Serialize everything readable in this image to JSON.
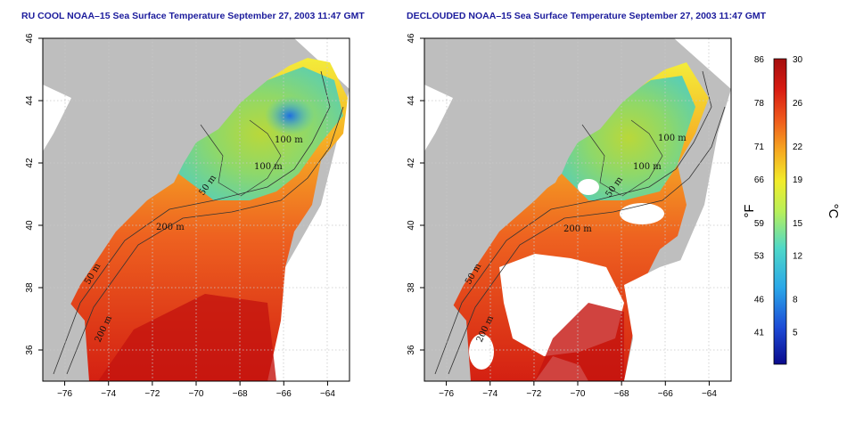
{
  "titles": {
    "left": "RU COOL NOAA–15 Sea Surface Temperature September 27, 2003 11:47 GMT",
    "right": "DECLOUDED NOAA–15 Sea Surface Temperature September 27, 2003 11:47 GMT"
  },
  "axes": {
    "x_ticks": [
      "−76",
      "−74",
      "−72",
      "−70",
      "−68",
      "−66",
      "−64"
    ],
    "x_values": [
      -76,
      -74,
      -72,
      -70,
      -68,
      -66,
      -64
    ],
    "y_ticks": [
      "36",
      "38",
      "40",
      "42",
      "44",
      "46"
    ],
    "y_values": [
      36,
      38,
      40,
      42,
      44,
      46
    ],
    "lon_range": [
      -77,
      -63
    ],
    "lat_range": [
      35,
      46
    ],
    "grid": "dotted"
  },
  "contour_labels": [
    "100 m",
    "100 m",
    "50 m",
    "200 m",
    "50 m",
    "200 m"
  ],
  "colorbar": {
    "unit_f": "°F",
    "unit_c": "°C",
    "f_ticks": [
      "86",
      "78",
      "71",
      "66",
      "59",
      "53",
      "46",
      "41"
    ],
    "c_ticks": [
      "30",
      "26",
      "22",
      "19",
      "15",
      "12",
      "8",
      "5"
    ],
    "c_range": [
      2,
      30
    ],
    "colors": [
      "#0a0a8c",
      "#1d4bd6",
      "#2aa7e8",
      "#4fd8c8",
      "#b8f05a",
      "#f2ec2a",
      "#f6a820",
      "#ef5a1c",
      "#d81b12",
      "#a50e0e"
    ]
  },
  "land_color": "#bebebe",
  "cloud_color": "#ffffff"
}
